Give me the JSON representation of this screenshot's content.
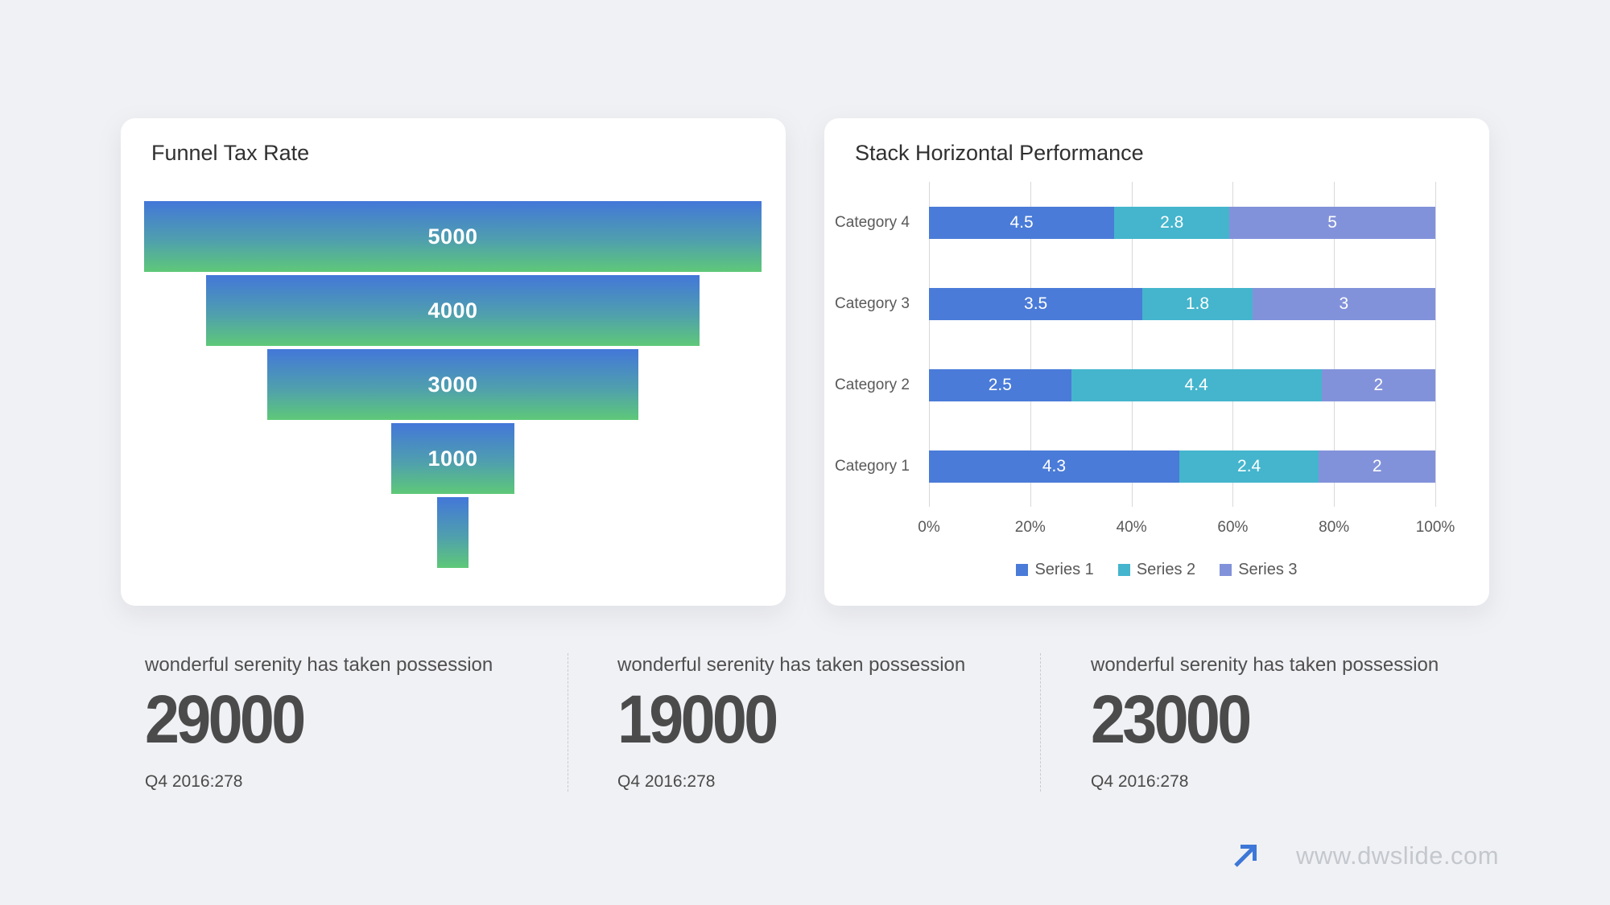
{
  "page": {
    "background": "#f0f1f4"
  },
  "funnel_card": {
    "title": "Funnel Tax Rate"
  },
  "stack_card": {
    "title": "Stack Horizontal Performance"
  },
  "chart_data": [
    {
      "type": "funnel",
      "title": "Funnel Tax Rate",
      "labels": [
        "5000",
        "4000",
        "3000",
        "1000",
        ""
      ],
      "values": [
        5000,
        4000,
        3000,
        1000,
        260
      ],
      "max": 5000,
      "bar_gradient_top": "#4377d9",
      "bar_gradient_bottom": "#5ec878",
      "label_color": "#ffffff"
    },
    {
      "type": "bar",
      "orientation": "horizontal",
      "stacked": "percent",
      "title": "Stack Horizontal Performance",
      "categories": [
        "Category 1",
        "Category 2",
        "Category 3",
        "Category 4"
      ],
      "series": [
        {
          "name": "Series 1",
          "color": "#4a7bd8",
          "values": [
            4.3,
            2.5,
            3.5,
            4.5
          ]
        },
        {
          "name": "Series 2",
          "color": "#44b5cd",
          "values": [
            2.4,
            4.4,
            1.8,
            2.8
          ]
        },
        {
          "name": "Series 3",
          "color": "#8292da",
          "values": [
            2,
            2,
            3,
            5
          ]
        }
      ],
      "x_ticks": [
        "0%",
        "20%",
        "40%",
        "60%",
        "80%",
        "100%"
      ],
      "xlim": [
        0,
        100
      ],
      "grid": true,
      "legend_position": "bottom",
      "axis_text_color": "#595959",
      "gridline_color": "#d9d9d9"
    }
  ],
  "stats": [
    {
      "label": "wonderful serenity has taken possession",
      "value": "29000",
      "sub": "Q4 2016:278"
    },
    {
      "label": "wonderful serenity has taken possession",
      "value": "19000",
      "sub": "Q4 2016:278"
    },
    {
      "label": "wonderful serenity has taken possession",
      "value": "23000",
      "sub": "Q4 2016:278"
    }
  ],
  "footer": {
    "url": "www.dwslide.com",
    "arrow_color": "#3d77d7"
  }
}
